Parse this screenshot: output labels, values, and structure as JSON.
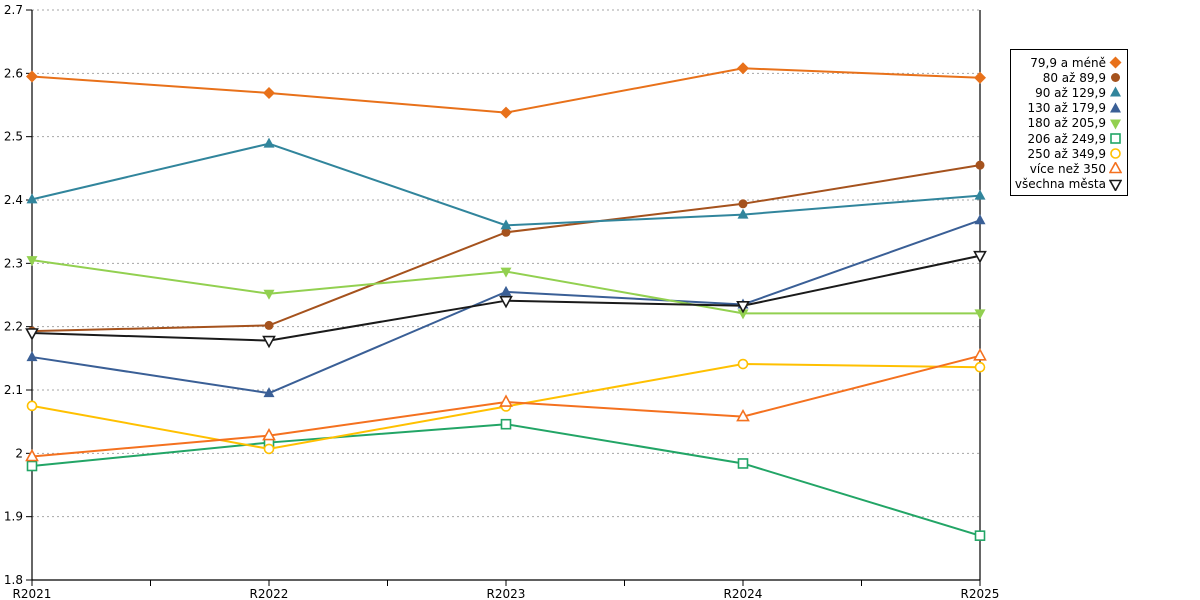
{
  "chart_data": {
    "type": "line",
    "categories": [
      "R2021",
      "R2022",
      "R2023",
      "R2024",
      "R2025"
    ],
    "series": [
      {
        "name": "79,9 a méně",
        "marker": "diamond",
        "fill": "solid",
        "color": "#E8711A",
        "values": [
          2.595,
          2.569,
          2.538,
          2.608,
          2.593
        ]
      },
      {
        "name": "80 až 89,9",
        "marker": "circle",
        "fill": "solid",
        "color": "#A5521D",
        "values": [
          2.193,
          2.202,
          2.349,
          2.394,
          2.455
        ]
      },
      {
        "name": "90 až 129,9",
        "marker": "triangle-up",
        "fill": "solid",
        "color": "#31859C",
        "values": [
          2.401,
          2.489,
          2.36,
          2.377,
          2.407
        ]
      },
      {
        "name": "130 až 179,9",
        "marker": "triangle-up",
        "fill": "solid",
        "color": "#3A5F96",
        "values": [
          2.152,
          2.095,
          2.255,
          2.235,
          2.368
        ]
      },
      {
        "name": "180 až 205,9",
        "marker": "triangle-down",
        "fill": "solid",
        "color": "#92D050",
        "values": [
          2.305,
          2.252,
          2.287,
          2.221,
          2.221
        ]
      },
      {
        "name": "206 až 249,9",
        "marker": "square",
        "fill": "hollow",
        "color": "#22A566",
        "values": [
          1.98,
          2.017,
          2.046,
          1.984,
          1.87
        ]
      },
      {
        "name": "250 až 349,9",
        "marker": "circle",
        "fill": "hollow",
        "color": "#FFC000",
        "values": [
          2.075,
          2.007,
          2.074,
          2.141,
          2.136
        ]
      },
      {
        "name": "více než 350",
        "marker": "triangle-up",
        "fill": "hollow",
        "color": "#F4711F",
        "values": [
          1.995,
          2.028,
          2.081,
          2.058,
          2.154
        ]
      },
      {
        "name": "všechna města",
        "marker": "triangle-down",
        "fill": "hollow",
        "color": "#1A1A1A",
        "values": [
          2.19,
          2.178,
          2.241,
          2.233,
          2.312
        ]
      }
    ],
    "ylim": [
      1.8,
      2.7
    ],
    "ytick_step": 0.1,
    "ytick_labels": [
      "2.7",
      "2.6",
      "2.5",
      "2.4",
      "2.3",
      "2.2",
      "2.1",
      "2",
      "1.9",
      "1.8"
    ],
    "grid": "horizontal-dashed",
    "gridline_color": "#A6A6A6",
    "axis_color": "#000000",
    "legend_position": "right",
    "title": "",
    "xlabel": "",
    "ylabel": ""
  }
}
